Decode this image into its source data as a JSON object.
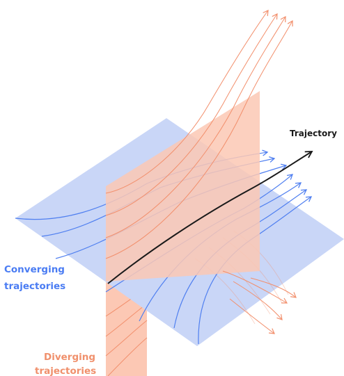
{
  "labels": {
    "trajectory": "Trajectory",
    "converging": [
      "Converging",
      "trajectories"
    ],
    "diverging": [
      "Diverging",
      "trajectories"
    ]
  },
  "colors": {
    "stable_plane": "#c9d6f7",
    "unstable_plane": "#fcc8b4",
    "converging_curve": "#4f7ff0",
    "diverging_curve": "#f28f6c",
    "trajectory": "#1a1a1a",
    "converging_text": "#4a7cf3",
    "diverging_text": "#f0906c"
  }
}
